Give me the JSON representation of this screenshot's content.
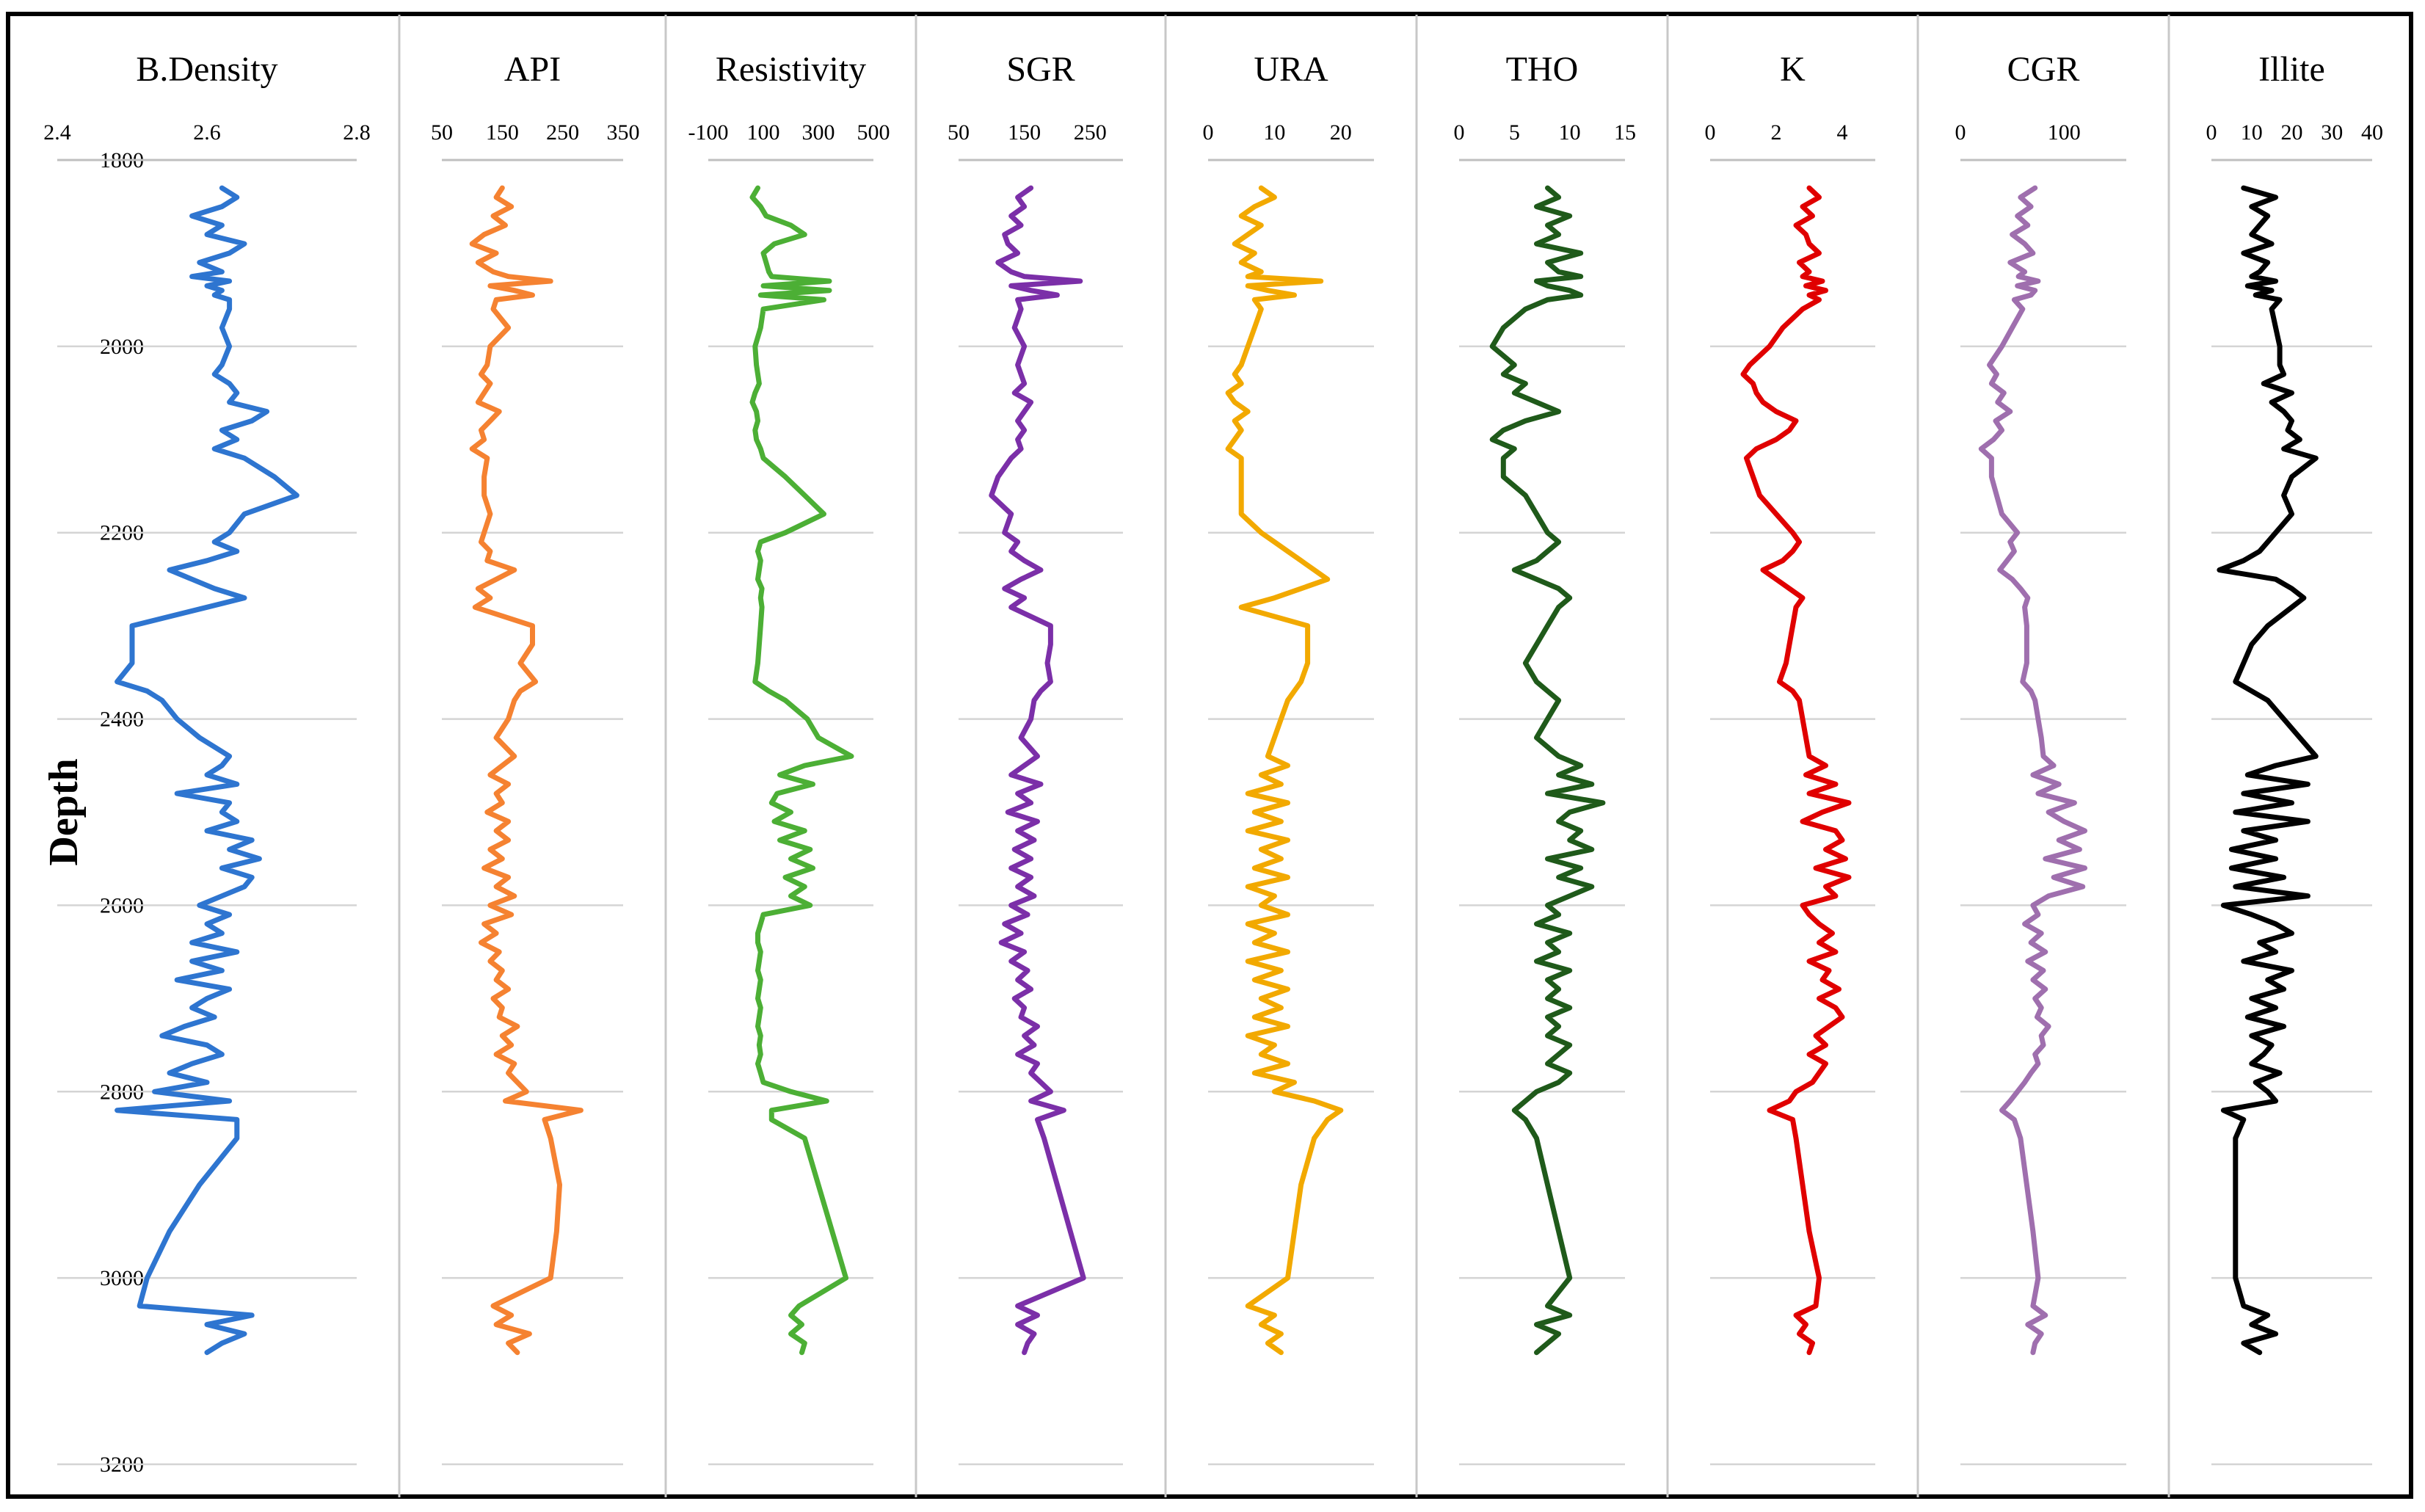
{
  "chart_data": {
    "type": "line",
    "orientation": "vertical-depth",
    "y_axis": {
      "label": "Depth",
      "range": [
        1800,
        3200
      ],
      "ticks": [
        1800,
        2000,
        2200,
        2400,
        2600,
        2800,
        3000,
        3200
      ],
      "tick_labels": [
        "1800",
        "2000",
        "2200",
        "2400",
        "2600",
        "2800",
        "3000",
        "3200"
      ],
      "inverted": true
    },
    "grid": true,
    "depth": [
      1830,
      1840,
      1850,
      1860,
      1870,
      1880,
      1890,
      1900,
      1910,
      1920,
      1925,
      1930,
      1935,
      1940,
      1945,
      1950,
      1960,
      1980,
      2000,
      2020,
      2030,
      2040,
      2050,
      2060,
      2070,
      2080,
      2090,
      2100,
      2110,
      2120,
      2140,
      2160,
      2180,
      2200,
      2210,
      2220,
      2230,
      2240,
      2250,
      2260,
      2270,
      2280,
      2300,
      2320,
      2340,
      2360,
      2370,
      2380,
      2400,
      2420,
      2440,
      2450,
      2460,
      2470,
      2480,
      2490,
      2500,
      2510,
      2520,
      2530,
      2540,
      2550,
      2560,
      2570,
      2580,
      2590,
      2600,
      2610,
      2620,
      2630,
      2640,
      2650,
      2660,
      2670,
      2680,
      2690,
      2700,
      2710,
      2720,
      2730,
      2740,
      2750,
      2760,
      2770,
      2780,
      2790,
      2800,
      2810,
      2820,
      2830,
      2850,
      2900,
      2950,
      3000,
      3030,
      3040,
      3050,
      3060,
      3070,
      3080
    ],
    "tracks": [
      {
        "name": "B.Density",
        "color": "#2E75D0",
        "range": [
          2.4,
          2.8
        ],
        "ticks": [
          2.4,
          2.6,
          2.8
        ],
        "tick_labels": [
          "2.4",
          "2.6",
          "2.8"
        ],
        "values": [
          2.62,
          2.64,
          2.62,
          2.58,
          2.62,
          2.6,
          2.65,
          2.63,
          2.59,
          2.62,
          2.58,
          2.63,
          2.6,
          2.62,
          2.61,
          2.63,
          2.63,
          2.62,
          2.63,
          2.62,
          2.61,
          2.63,
          2.64,
          2.63,
          2.68,
          2.66,
          2.62,
          2.64,
          2.61,
          2.65,
          2.69,
          2.72,
          2.65,
          2.63,
          2.61,
          2.64,
          2.6,
          2.55,
          2.58,
          2.61,
          2.65,
          2.6,
          2.5,
          2.5,
          2.5,
          2.48,
          2.52,
          2.54,
          2.56,
          2.59,
          2.63,
          2.62,
          2.6,
          2.64,
          2.56,
          2.63,
          2.62,
          2.64,
          2.6,
          2.66,
          2.63,
          2.67,
          2.62,
          2.66,
          2.65,
          2.62,
          2.59,
          2.63,
          2.6,
          2.62,
          2.58,
          2.64,
          2.58,
          2.62,
          2.56,
          2.63,
          2.6,
          2.58,
          2.61,
          2.57,
          2.54,
          2.6,
          2.62,
          2.58,
          2.55,
          2.6,
          2.53,
          2.63,
          2.48,
          2.64,
          2.64,
          2.59,
          2.55,
          2.52,
          2.51,
          2.66,
          2.6,
          2.65,
          2.62,
          2.6
        ]
      },
      {
        "name": "API",
        "color": "#F58231",
        "range": [
          50,
          350
        ],
        "ticks": [
          50,
          150,
          250,
          350
        ],
        "tick_labels": [
          "50",
          "150",
          "250",
          "350"
        ],
        "values": [
          150,
          140,
          165,
          135,
          155,
          120,
          100,
          140,
          110,
          135,
          160,
          230,
          130,
          170,
          200,
          140,
          135,
          160,
          130,
          125,
          115,
          130,
          120,
          110,
          145,
          130,
          115,
          120,
          100,
          125,
          120,
          120,
          130,
          120,
          115,
          130,
          125,
          170,
          140,
          110,
          130,
          105,
          200,
          200,
          180,
          205,
          180,
          170,
          160,
          140,
          170,
          150,
          130,
          160,
          140,
          150,
          125,
          160,
          140,
          160,
          130,
          150,
          120,
          160,
          140,
          170,
          130,
          165,
          120,
          140,
          115,
          145,
          130,
          150,
          140,
          160,
          135,
          150,
          145,
          175,
          150,
          165,
          140,
          170,
          160,
          175,
          190,
          155,
          280,
          220,
          230,
          245,
          240,
          230,
          135,
          165,
          140,
          195,
          160,
          175
        ]
      },
      {
        "name": "Resistivity",
        "color": "#4CAF35",
        "range": [
          -100,
          500
        ],
        "ticks": [
          -100,
          100,
          300,
          500
        ],
        "tick_labels": [
          "-100",
          "100",
          "300",
          "500"
        ],
        "values": [
          80,
          60,
          90,
          110,
          200,
          250,
          140,
          100,
          110,
          120,
          130,
          340,
          100,
          340,
          90,
          320,
          100,
          90,
          70,
          75,
          80,
          85,
          70,
          60,
          75,
          80,
          70,
          75,
          90,
          100,
          180,
          250,
          320,
          180,
          90,
          80,
          90,
          85,
          80,
          95,
          90,
          95,
          90,
          85,
          80,
          70,
          120,
          180,
          260,
          300,
          420,
          250,
          160,
          280,
          150,
          130,
          200,
          140,
          250,
          160,
          270,
          200,
          280,
          180,
          250,
          200,
          270,
          100,
          90,
          80,
          80,
          90,
          85,
          80,
          90,
          85,
          80,
          90,
          85,
          80,
          90,
          85,
          90,
          80,
          90,
          100,
          200,
          330,
          130,
          130,
          250,
          300,
          350,
          400,
          230,
          200,
          240,
          200,
          250,
          240
        ]
      },
      {
        "name": "SGR",
        "color": "#7B2FA8",
        "range": [
          50,
          300
        ],
        "ticks": [
          50,
          150,
          250
        ],
        "tick_labels": [
          "50",
          "150",
          "250"
        ],
        "values": [
          160,
          140,
          150,
          130,
          145,
          120,
          125,
          140,
          110,
          130,
          150,
          235,
          130,
          160,
          200,
          140,
          145,
          135,
          150,
          140,
          145,
          150,
          135,
          160,
          150,
          140,
          150,
          140,
          145,
          130,
          110,
          100,
          130,
          120,
          140,
          130,
          150,
          175,
          145,
          120,
          150,
          130,
          190,
          190,
          185,
          190,
          175,
          165,
          160,
          145,
          170,
          150,
          130,
          175,
          140,
          160,
          125,
          170,
          140,
          165,
          135,
          160,
          130,
          160,
          140,
          165,
          130,
          155,
          120,
          145,
          115,
          150,
          130,
          155,
          140,
          160,
          135,
          150,
          145,
          170,
          150,
          165,
          140,
          170,
          160,
          175,
          190,
          160,
          210,
          170,
          180,
          200,
          220,
          240,
          140,
          170,
          140,
          165,
          155,
          150
        ]
      },
      {
        "name": "URA",
        "color": "#F2A900",
        "range": [
          0,
          25
        ],
        "ticks": [
          0,
          10,
          20
        ],
        "tick_labels": [
          "0",
          "10",
          "20"
        ],
        "values": [
          8,
          10,
          7,
          5,
          8,
          6,
          4,
          7,
          5,
          8,
          6,
          17,
          6,
          9,
          13,
          7,
          8,
          7,
          6,
          5,
          4,
          5,
          3,
          4,
          6,
          4,
          5,
          4,
          3,
          5,
          5,
          5,
          5,
          8,
          10,
          12,
          14,
          16,
          18,
          14,
          10,
          5,
          15,
          15,
          15,
          14,
          13,
          12,
          11,
          10,
          9,
          12,
          8,
          11,
          6,
          12,
          7,
          11,
          6,
          12,
          8,
          11,
          7,
          12,
          6,
          10,
          8,
          12,
          6,
          10,
          7,
          12,
          6,
          11,
          7,
          12,
          8,
          11,
          7,
          12,
          6,
          10,
          8,
          12,
          7,
          13,
          10,
          16,
          20,
          18,
          16,
          14,
          13,
          12,
          6,
          10,
          8,
          11,
          9,
          11
        ]
      },
      {
        "name": "THO",
        "color": "#1F5A1A",
        "range": [
          0,
          15
        ],
        "ticks": [
          0,
          5,
          10,
          15
        ],
        "tick_labels": [
          "0",
          "5",
          "10",
          "15"
        ],
        "values": [
          8,
          9,
          7,
          10,
          8,
          9,
          7,
          11,
          8,
          9,
          11,
          7,
          8,
          10,
          11,
          8,
          6,
          4,
          3,
          5,
          4,
          6,
          5,
          7,
          9,
          6,
          4,
          3,
          5,
          4,
          4,
          6,
          7,
          8,
          9,
          8,
          7,
          5,
          7,
          9,
          10,
          9,
          8,
          7,
          6,
          7,
          8,
          9,
          8,
          7,
          9,
          11,
          9,
          12,
          8,
          13,
          10,
          9,
          11,
          10,
          12,
          8,
          11,
          9,
          12,
          10,
          8,
          9,
          7,
          10,
          8,
          9,
          7,
          10,
          8,
          9,
          8,
          10,
          8,
          9,
          8,
          10,
          9,
          8,
          10,
          9,
          7,
          6,
          5,
          6,
          7,
          8,
          9,
          10,
          8,
          10,
          7,
          9,
          8,
          7
        ]
      },
      {
        "name": "K",
        "color": "#E00000",
        "range": [
          0,
          5
        ],
        "ticks": [
          0,
          2,
          4
        ],
        "tick_labels": [
          "0",
          "2",
          "4"
        ],
        "values": [
          3.0,
          3.3,
          2.8,
          3.1,
          2.6,
          2.9,
          3.0,
          3.3,
          2.7,
          3.0,
          2.8,
          3.4,
          2.9,
          3.5,
          3.0,
          3.3,
          2.8,
          2.2,
          1.8,
          1.2,
          1.0,
          1.3,
          1.4,
          1.6,
          2.0,
          2.6,
          2.4,
          2.0,
          1.4,
          1.1,
          1.3,
          1.5,
          2.0,
          2.5,
          2.7,
          2.5,
          2.2,
          1.6,
          2.0,
          2.4,
          2.8,
          2.6,
          2.5,
          2.4,
          2.3,
          2.1,
          2.5,
          2.7,
          2.8,
          2.9,
          3.0,
          3.5,
          2.9,
          3.8,
          3.0,
          4.2,
          3.4,
          2.8,
          3.8,
          4.0,
          3.5,
          4.1,
          3.2,
          4.2,
          3.5,
          3.8,
          2.8,
          3.0,
          3.3,
          3.7,
          3.3,
          3.8,
          3.0,
          3.6,
          3.4,
          3.9,
          3.3,
          3.8,
          4.0,
          3.6,
          3.2,
          3.5,
          3.0,
          3.5,
          3.3,
          3.1,
          2.6,
          2.4,
          1.8,
          2.5,
          2.6,
          2.8,
          3.0,
          3.3,
          3.2,
          2.6,
          2.9,
          2.7,
          3.1,
          3.0
        ]
      },
      {
        "name": "CGR",
        "color": "#9F6FAE",
        "range": [
          0,
          160
        ],
        "ticks": [
          0,
          100
        ],
        "tick_labels": [
          "0",
          "100"
        ],
        "values": [
          72,
          58,
          68,
          55,
          65,
          50,
          62,
          70,
          48,
          62,
          56,
          75,
          55,
          72,
          68,
          52,
          60,
          50,
          40,
          28,
          35,
          30,
          42,
          36,
          48,
          34,
          40,
          32,
          20,
          30,
          30,
          35,
          40,
          55,
          48,
          52,
          45,
          38,
          50,
          58,
          65,
          62,
          64,
          64,
          64,
          60,
          68,
          72,
          75,
          78,
          80,
          90,
          70,
          95,
          75,
          110,
          85,
          100,
          120,
          95,
          115,
          82,
          120,
          90,
          118,
          85,
          70,
          75,
          62,
          78,
          68,
          82,
          65,
          80,
          70,
          82,
          72,
          78,
          74,
          85,
          78,
          80,
          72,
          75,
          68,
          62,
          55,
          48,
          40,
          52,
          58,
          64,
          70,
          75,
          70,
          82,
          65,
          78,
          72,
          70
        ]
      },
      {
        "name": "Illite",
        "color": "#000000",
        "range": [
          0,
          40
        ],
        "ticks": [
          0,
          10,
          20,
          30,
          40
        ],
        "tick_labels": [
          "0",
          "10",
          "20",
          "30",
          "40"
        ],
        "values": [
          8,
          16,
          10,
          14,
          12,
          10,
          15,
          8,
          14,
          12,
          10,
          16,
          9,
          15,
          11,
          17,
          15,
          16,
          17,
          17,
          18,
          13,
          20,
          15,
          18,
          20,
          19,
          22,
          18,
          26,
          20,
          18,
          20,
          16,
          14,
          12,
          8,
          2,
          16,
          20,
          23,
          20,
          14,
          10,
          8,
          6,
          10,
          14,
          18,
          22,
          26,
          16,
          9,
          24,
          8,
          20,
          6,
          24,
          8,
          16,
          5,
          16,
          5,
          18,
          6,
          24,
          3,
          10,
          16,
          20,
          12,
          16,
          8,
          20,
          14,
          18,
          10,
          16,
          9,
          18,
          10,
          15,
          13,
          10,
          17,
          11,
          14,
          16,
          3,
          8,
          6,
          6,
          6,
          6,
          8,
          14,
          10,
          16,
          8,
          12
        ]
      }
    ]
  }
}
